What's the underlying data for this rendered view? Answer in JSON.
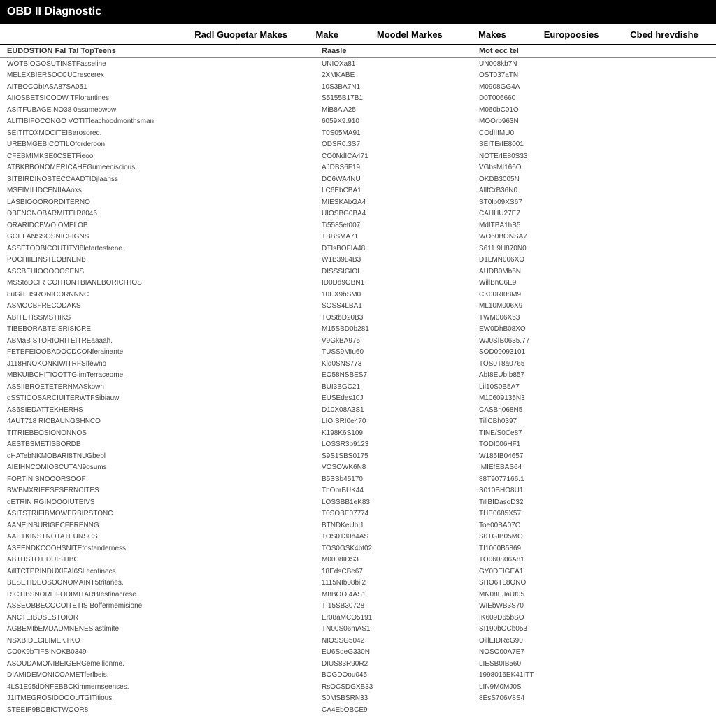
{
  "titlebar": {
    "title": "OBD II Diagnostic"
  },
  "header": {
    "colA": "",
    "colB": "Radl Guopetar Makes",
    "colC": "Make",
    "colD": "Moodel Markes",
    "colE": "Makes",
    "colF": "Europoosies",
    "colG": "Cbed hrevdishe"
  },
  "subheader": {
    "col1": "EUDOSTION Fal Tal TopTeens",
    "col2": "Raasle",
    "col3": "Mot ecc tel"
  },
  "rows": [
    {
      "c1": "WOTBIOGOSUTINSTFasseline",
      "c2": "UNIOXa81",
      "c3": "UN008kb7N"
    },
    {
      "c1": "MELEXBIERSOCCUCrescerex",
      "c2": "2XMKABE",
      "c3": "OST037aTN"
    },
    {
      "c1": "AITBOCObIASA87SA051",
      "c2": "10S3BA7N1",
      "c3": "M0908GG4A"
    },
    {
      "c1": "AIIOSBETSICOOW TFlorantines",
      "c2": "S5155B17B1",
      "c3": "D0T006660"
    },
    {
      "c1": "ASITFUBAGE NO38 0asumeowow",
      "c2": "MiB8A A25",
      "c3": "M060bC01O"
    },
    {
      "c1": "ALITIBIFOCONGO VOTITleachoodmonthsman",
      "c2": "6059X9.910",
      "c3": "MOOrb963N"
    },
    {
      "c1": "SEITITOXMOCITEIBarosorec.",
      "c2": "T0S05MA91",
      "c3": "COdIIIMU0"
    },
    {
      "c1": "UREBMGEBICOTILOforderoon",
      "c2": "ODSR0.3S7",
      "c3": "SEITErIE8001"
    },
    {
      "c1": "CFEBMIMKSE0CSETFieoo",
      "c2": "CO0NdICA471",
      "c3": "NOTErIE80S33"
    },
    {
      "c1": "ATBKBBONOMERICAHEGumeeniscious.",
      "c2": "AJDBS6F19",
      "c3": "VGbsMI166O"
    },
    {
      "c1": "SITBIRDINOSTECCAADTIDjlaanss",
      "c2": "DC6WA4NU",
      "c3": "OKDB3005N"
    },
    {
      "c1": "MSEIMILIDCENIIAAoxs.",
      "c2": "LC6EbCBA1",
      "c3": "AllfCrB36N0"
    },
    {
      "c1": "LASBIOOORORDITERNO",
      "c2": "MIESKAbGA4",
      "c3": "ST0lb09XS67"
    },
    {
      "c1": "DBENONOBARMITEliR8046",
      "c2": "UIOSBG0BA4",
      "c3": "CAHHU27E7"
    },
    {
      "c1": "ORARIDCBWOIOMELOB",
      "c2": "Ti5585et007",
      "c3": "MdITBA1hB5"
    },
    {
      "c1": "GOELANSSOSNICFIGNS",
      "c2": "TBBSMA71",
      "c3": "WO60BONSA7"
    },
    {
      "c1": "ASSETODBICOUTITYI8letartestrene.",
      "c2": "DTIsBOFIA48",
      "c3": "S611.9H870N0"
    },
    {
      "c1": "POCHIIEINSTEOBNENB",
      "c2": "W1B39L4B3",
      "c3": "D1LMN006XO"
    },
    {
      "c1": "ASCBEHIOOOOOSENS",
      "c2": "DISSSIGIOL",
      "c3": "AUDB0Mb6N"
    },
    {
      "c1": "MSStoDCIR COITIONTBIANEBORICITIOS",
      "c2": "ID0Dd9OBN1",
      "c3": "WillBnC6E9"
    },
    {
      "c1": "8uGiTHSRONICORNNNC",
      "c2": "10EX9bSM0",
      "c3": "CK00RI08M9"
    },
    {
      "c1": "ASMOCBFRECODAKS",
      "c2": "SOSS4LBA1",
      "c3": "ML10M006X9"
    },
    {
      "c1": "ABITETISSMSTIIKS",
      "c2": "TOStbD20B3",
      "c3": "TWM006X53"
    },
    {
      "c1": "TIBEBORABTEISRISICRE",
      "c2": "M15SBD0b281",
      "c3": "EW0DhB08XO"
    },
    {
      "c1": "ABMaB STORIORITEITREaaaah.",
      "c2": "V9GkBA975",
      "c3": "WJ0SIB0635.77"
    },
    {
      "c1": "FETEFEIOOBADOCDCONferainante",
      "c2": "TUSS9MIu60",
      "c3": "SOD09093101"
    },
    {
      "c1": "J118HNOKONKIWITRFSIfewno",
      "c2": "Kld0SNS773",
      "c3": "TOS0T8a0765"
    },
    {
      "c1": "MBKUIBCHITIOOTTGIimTerraceome.",
      "c2": "EO58NSBES7",
      "c3": "AbI8EUbIb857"
    },
    {
      "c1": "ASSIIBROETETERNMASkown",
      "c2": "BUI3BGC21",
      "c3": "Lil10S0B5A7"
    },
    {
      "c1": "dSSTIOOSARCIUITERWTFSibiauw",
      "c2": "EUSEdes10J",
      "c3": "M10609135N3"
    },
    {
      "c1": "AS6SIEDATTEKHERHS",
      "c2": "D10X08A3S1",
      "c3": "CASBh068N5"
    },
    {
      "c1": "4AUT718 RICBAUNGSHNCO",
      "c2": "LIOISRI0e470",
      "c3": "TillCBh0397"
    },
    {
      "c1": "TITRIEBEOSIONONNOS",
      "c2": "K198K6S109",
      "c3": "TINE/S0Ce87"
    },
    {
      "c1": "AESTBSMETISBORDB",
      "c2": "LOSSR3b9123",
      "c3": "TODI006HF1"
    },
    {
      "c1": "dHATebNKMOBARI8TNUGbebl",
      "c2": "S9S1SBS0175",
      "c3": "W185IB04657"
    },
    {
      "c1": "AIEIHNCOMIOSCUTAN9osums",
      "c2": "VOSOWK6N8",
      "c3": "IMIEfEBAS64"
    },
    {
      "c1": "FORTINISNOOORSOOF",
      "c2": "B5SSb45170",
      "c3": "88T9077166.1"
    },
    {
      "c1": "BWBMXRIEESESERNCITES",
      "c2": "ThObrBUK44",
      "c3": "S010BHO8U1"
    },
    {
      "c1": "dETRIN RGINOOOIUTEIVS",
      "c2": "LOSSBB1eK83",
      "c3": "TillBIDasoD32"
    },
    {
      "c1": "ASITSTRIFIBMOWERBIRSTONC",
      "c2": "T0SOBE07774",
      "c3": "THE0685X57"
    },
    {
      "c1": "AANEINSURIGECFERENNG",
      "c2": "BTNDKeUbI1",
      "c3": "Toe00BA07O"
    },
    {
      "c1": "AAETKINSTNOTATEUNSCS",
      "c2": "TOS0130h4AS",
      "c3": "S0TGIB05MO"
    },
    {
      "c1": "ASEENDKCOOHSNITEfostanderness.",
      "c2": "TOS0GSK4bt02",
      "c3": "TI1000B5869"
    },
    {
      "c1": "ABTHSTOTIDUISTIBC",
      "c2": "M0008IDS3",
      "c3": "TO060806A81"
    },
    {
      "c1": "AillTCTPRINDUXIFAI6SLecotinecs.",
      "c2": "18EdsCBe67",
      "c3": "GY0DEIGEA1"
    },
    {
      "c1": "BESETIDEOSOONOMAINT5tritanes.",
      "c2": "1115NIb08bil2",
      "c3": "SHO6TL8ONO"
    },
    {
      "c1": "RICTIBSNORLIFODIMITARBIestinacrese.",
      "c2": "M8BOOI4AS1",
      "c3": "MN08EJaUt05"
    },
    {
      "c1": "ASSEOBBECOCOITETIS Boffermemisione.",
      "c2": "TI15SB30728",
      "c3": "WIEbWB3S70"
    },
    {
      "c1": "ANCTEIBUSESTOIOR",
      "c2": "Er08aMCO5191",
      "c3": "IK609D65bSO"
    },
    {
      "c1": "AGBEMIbEMDADMNENESiastimite",
      "c2": "TN00S06mAS1",
      "c3": "SI190bOCb053"
    },
    {
      "c1": "NSXBIDECILIMEKTKO",
      "c2": "NIOSSG5042",
      "c3": "OillEIDReG90"
    },
    {
      "c1": "CO0K9bTIFSINOKB0349",
      "c2": "EU6SdeG330N",
      "c3": "NOSO00A7E7"
    },
    {
      "c1": "ASOUDAMONIBEIGERGemeilionme.",
      "c2": "DIUS83R90R2",
      "c3": "LIESB0IB560"
    },
    {
      "c1": "DIAMIDEMONICOAMETferlbeis.",
      "c2": "BOGDOou045",
      "c3": "1998016EK41ITT"
    },
    {
      "c1": "4LS1E95dDNFEBBCKimmernseenses.",
      "c2": "RsOCSDGXB33",
      "c3": "LIN9M0MJ0S"
    },
    {
      "c1": "J1ITMEGROSIDOOOUTGITitious.",
      "c2": "S0MSBSRN33",
      "c3": "8EsS706V8S4"
    },
    {
      "c1": "STEEIP9BOBICTWOOR8",
      "c2": "CA4EbOBCE9",
      "c3": ""
    }
  ],
  "styling": {
    "titlebar_bg": "#000000",
    "titlebar_fg": "#ffffff",
    "body_bg": "#ffffff",
    "header_border": "#000000",
    "subheader_border": "#888888",
    "text_color": "#444444",
    "header_fontsize": 13,
    "subheader_fontsize": 11,
    "row_fontsize": 10
  }
}
